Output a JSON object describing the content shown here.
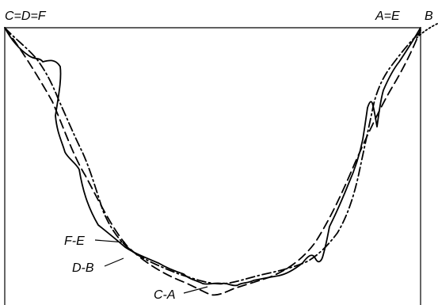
{
  "labels": {
    "top_left": "C=D=F",
    "top_right_ae": "A=E",
    "top_right_b": "B",
    "fe": "F-E",
    "db": "D-B",
    "ca": "C-A"
  }
}
